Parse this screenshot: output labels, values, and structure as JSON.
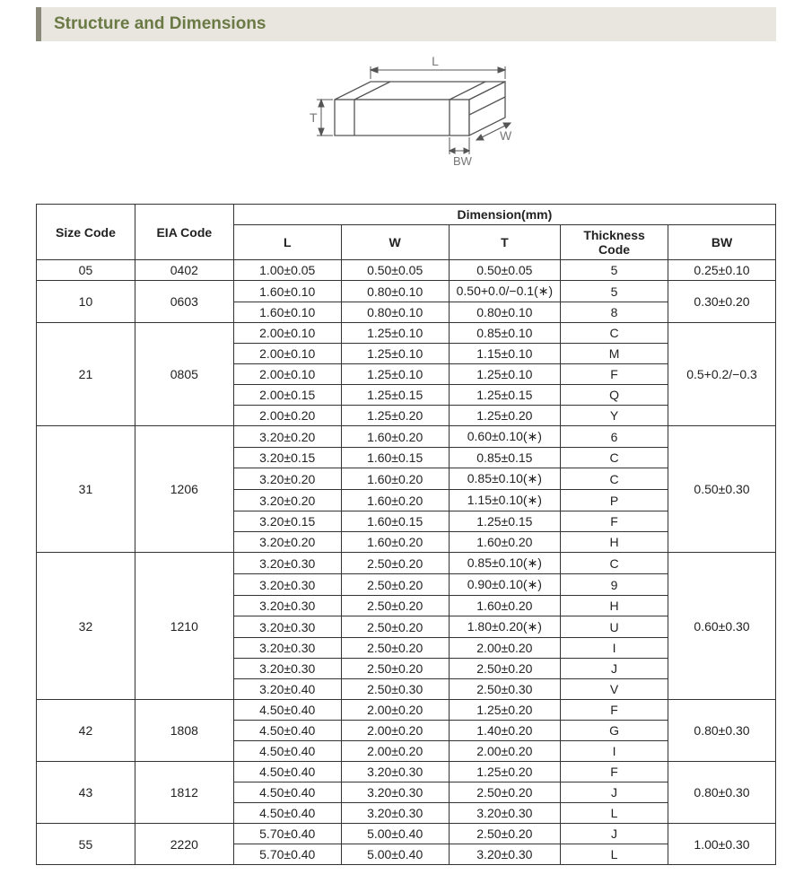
{
  "header": {
    "title": "Structure and Dimensions"
  },
  "colors": {
    "header_bg": "#e8e6df",
    "accent_border": "#8a8a7a",
    "header_text": "#6b7a45",
    "table_border": "#333333",
    "diagram_stroke": "#555555",
    "diagram_text": "#777777"
  },
  "diagram": {
    "labels": {
      "L": "L",
      "W": "W",
      "T": "T",
      "BW": "BW"
    },
    "stroke_width": 1.3
  },
  "table": {
    "headers": {
      "size": "Size Code",
      "eia": "EIA Code",
      "dim": "Dimension(mm)",
      "L": "L",
      "W": "W",
      "T": "T",
      "tc": "Thickness  Code",
      "bw": "BW"
    },
    "groups": [
      {
        "size": "05",
        "eia": "0402",
        "bw": "0.25±0.10",
        "rows": [
          {
            "L": "1.00±0.05",
            "W": "0.50±0.05",
            "T": "0.50±0.05",
            "tc": "5"
          }
        ]
      },
      {
        "size": "10",
        "eia": "0603",
        "bw": "0.30±0.20",
        "rows": [
          {
            "L": "1.60±0.10",
            "W": "0.80±0.10",
            "T": "0.50+0.0/−0.1(∗)",
            "tc": "5"
          },
          {
            "L": "1.60±0.10",
            "W": "0.80±0.10",
            "T": "0.80±0.10",
            "tc": "8"
          }
        ]
      },
      {
        "size": "21",
        "eia": "0805",
        "bw": "0.5+0.2/−0.3",
        "rows": [
          {
            "L": "2.00±0.10",
            "W": "1.25±0.10",
            "T": "0.85±0.10",
            "tc": "C"
          },
          {
            "L": "2.00±0.10",
            "W": "1.25±0.10",
            "T": "1.15±0.10",
            "tc": "M"
          },
          {
            "L": "2.00±0.10",
            "W": "1.25±0.10",
            "T": "1.25±0.10",
            "tc": "F"
          },
          {
            "L": "2.00±0.15",
            "W": "1.25±0.15",
            "T": "1.25±0.15",
            "tc": "Q"
          },
          {
            "L": "2.00±0.20",
            "W": "1.25±0.20",
            "T": "1.25±0.20",
            "tc": "Y"
          }
        ]
      },
      {
        "size": "31",
        "eia": "1206",
        "bw": "0.50±0.30",
        "rows": [
          {
            "L": "3.20±0.20",
            "W": "1.60±0.20",
            "T": "0.60±0.10(∗)",
            "tc": "6"
          },
          {
            "L": "3.20±0.15",
            "W": "1.60±0.15",
            "T": "0.85±0.15",
            "tc": "C"
          },
          {
            "L": "3.20±0.20",
            "W": "1.60±0.20",
            "T": "0.85±0.10(∗)",
            "tc": "C"
          },
          {
            "L": "3.20±0.20",
            "W": "1.60±0.20",
            "T": "1.15±0.10(∗)",
            "tc": "P"
          },
          {
            "L": "3.20±0.15",
            "W": "1.60±0.15",
            "T": "1.25±0.15",
            "tc": "F"
          },
          {
            "L": "3.20±0.20",
            "W": "1.60±0.20",
            "T": "1.60±0.20",
            "tc": "H"
          }
        ]
      },
      {
        "size": "32",
        "eia": "1210",
        "bw": "0.60±0.30",
        "rows": [
          {
            "L": "3.20±0.30",
            "W": "2.50±0.20",
            "T": "0.85±0.10(∗)",
            "tc": "C"
          },
          {
            "L": "3.20±0.30",
            "W": "2.50±0.20",
            "T": "0.90±0.10(∗)",
            "tc": "9"
          },
          {
            "L": "3.20±0.30",
            "W": "2.50±0.20",
            "T": "1.60±0.20",
            "tc": "H"
          },
          {
            "L": "3.20±0.30",
            "W": "2.50±0.20",
            "T": "1.80±0.20(∗)",
            "tc": "U"
          },
          {
            "L": "3.20±0.30",
            "W": "2.50±0.20",
            "T": "2.00±0.20",
            "tc": "I"
          },
          {
            "L": "3.20±0.30",
            "W": "2.50±0.20",
            "T": "2.50±0.20",
            "tc": "J"
          },
          {
            "L": "3.20±0.40",
            "W": "2.50±0.30",
            "T": "2.50±0.30",
            "tc": "V"
          }
        ]
      },
      {
        "size": "42",
        "eia": "1808",
        "bw": "0.80±0.30",
        "rows": [
          {
            "L": "4.50±0.40",
            "W": "2.00±0.20",
            "T": "1.25±0.20",
            "tc": "F"
          },
          {
            "L": "4.50±0.40",
            "W": "2.00±0.20",
            "T": "1.40±0.20",
            "tc": "G"
          },
          {
            "L": "4.50±0.40",
            "W": "2.00±0.20",
            "T": "2.00±0.20",
            "tc": "I"
          }
        ]
      },
      {
        "size": "43",
        "eia": "1812",
        "bw": "0.80±0.30",
        "rows": [
          {
            "L": "4.50±0.40",
            "W": "3.20±0.30",
            "T": "1.25±0.20",
            "tc": "F"
          },
          {
            "L": "4.50±0.40",
            "W": "3.20±0.30",
            "T": "2.50±0.20",
            "tc": "J"
          },
          {
            "L": "4.50±0.40",
            "W": "3.20±0.30",
            "T": "3.20±0.30",
            "tc": "L"
          }
        ]
      },
      {
        "size": "55",
        "eia": "2220",
        "bw": "1.00±0.30",
        "rows": [
          {
            "L": "5.70±0.40",
            "W": "5.00±0.40",
            "T": "2.50±0.20",
            "tc": "J"
          },
          {
            "L": "5.70±0.40",
            "W": "5.00±0.40",
            "T": "3.20±0.30",
            "tc": "L"
          }
        ]
      }
    ]
  }
}
